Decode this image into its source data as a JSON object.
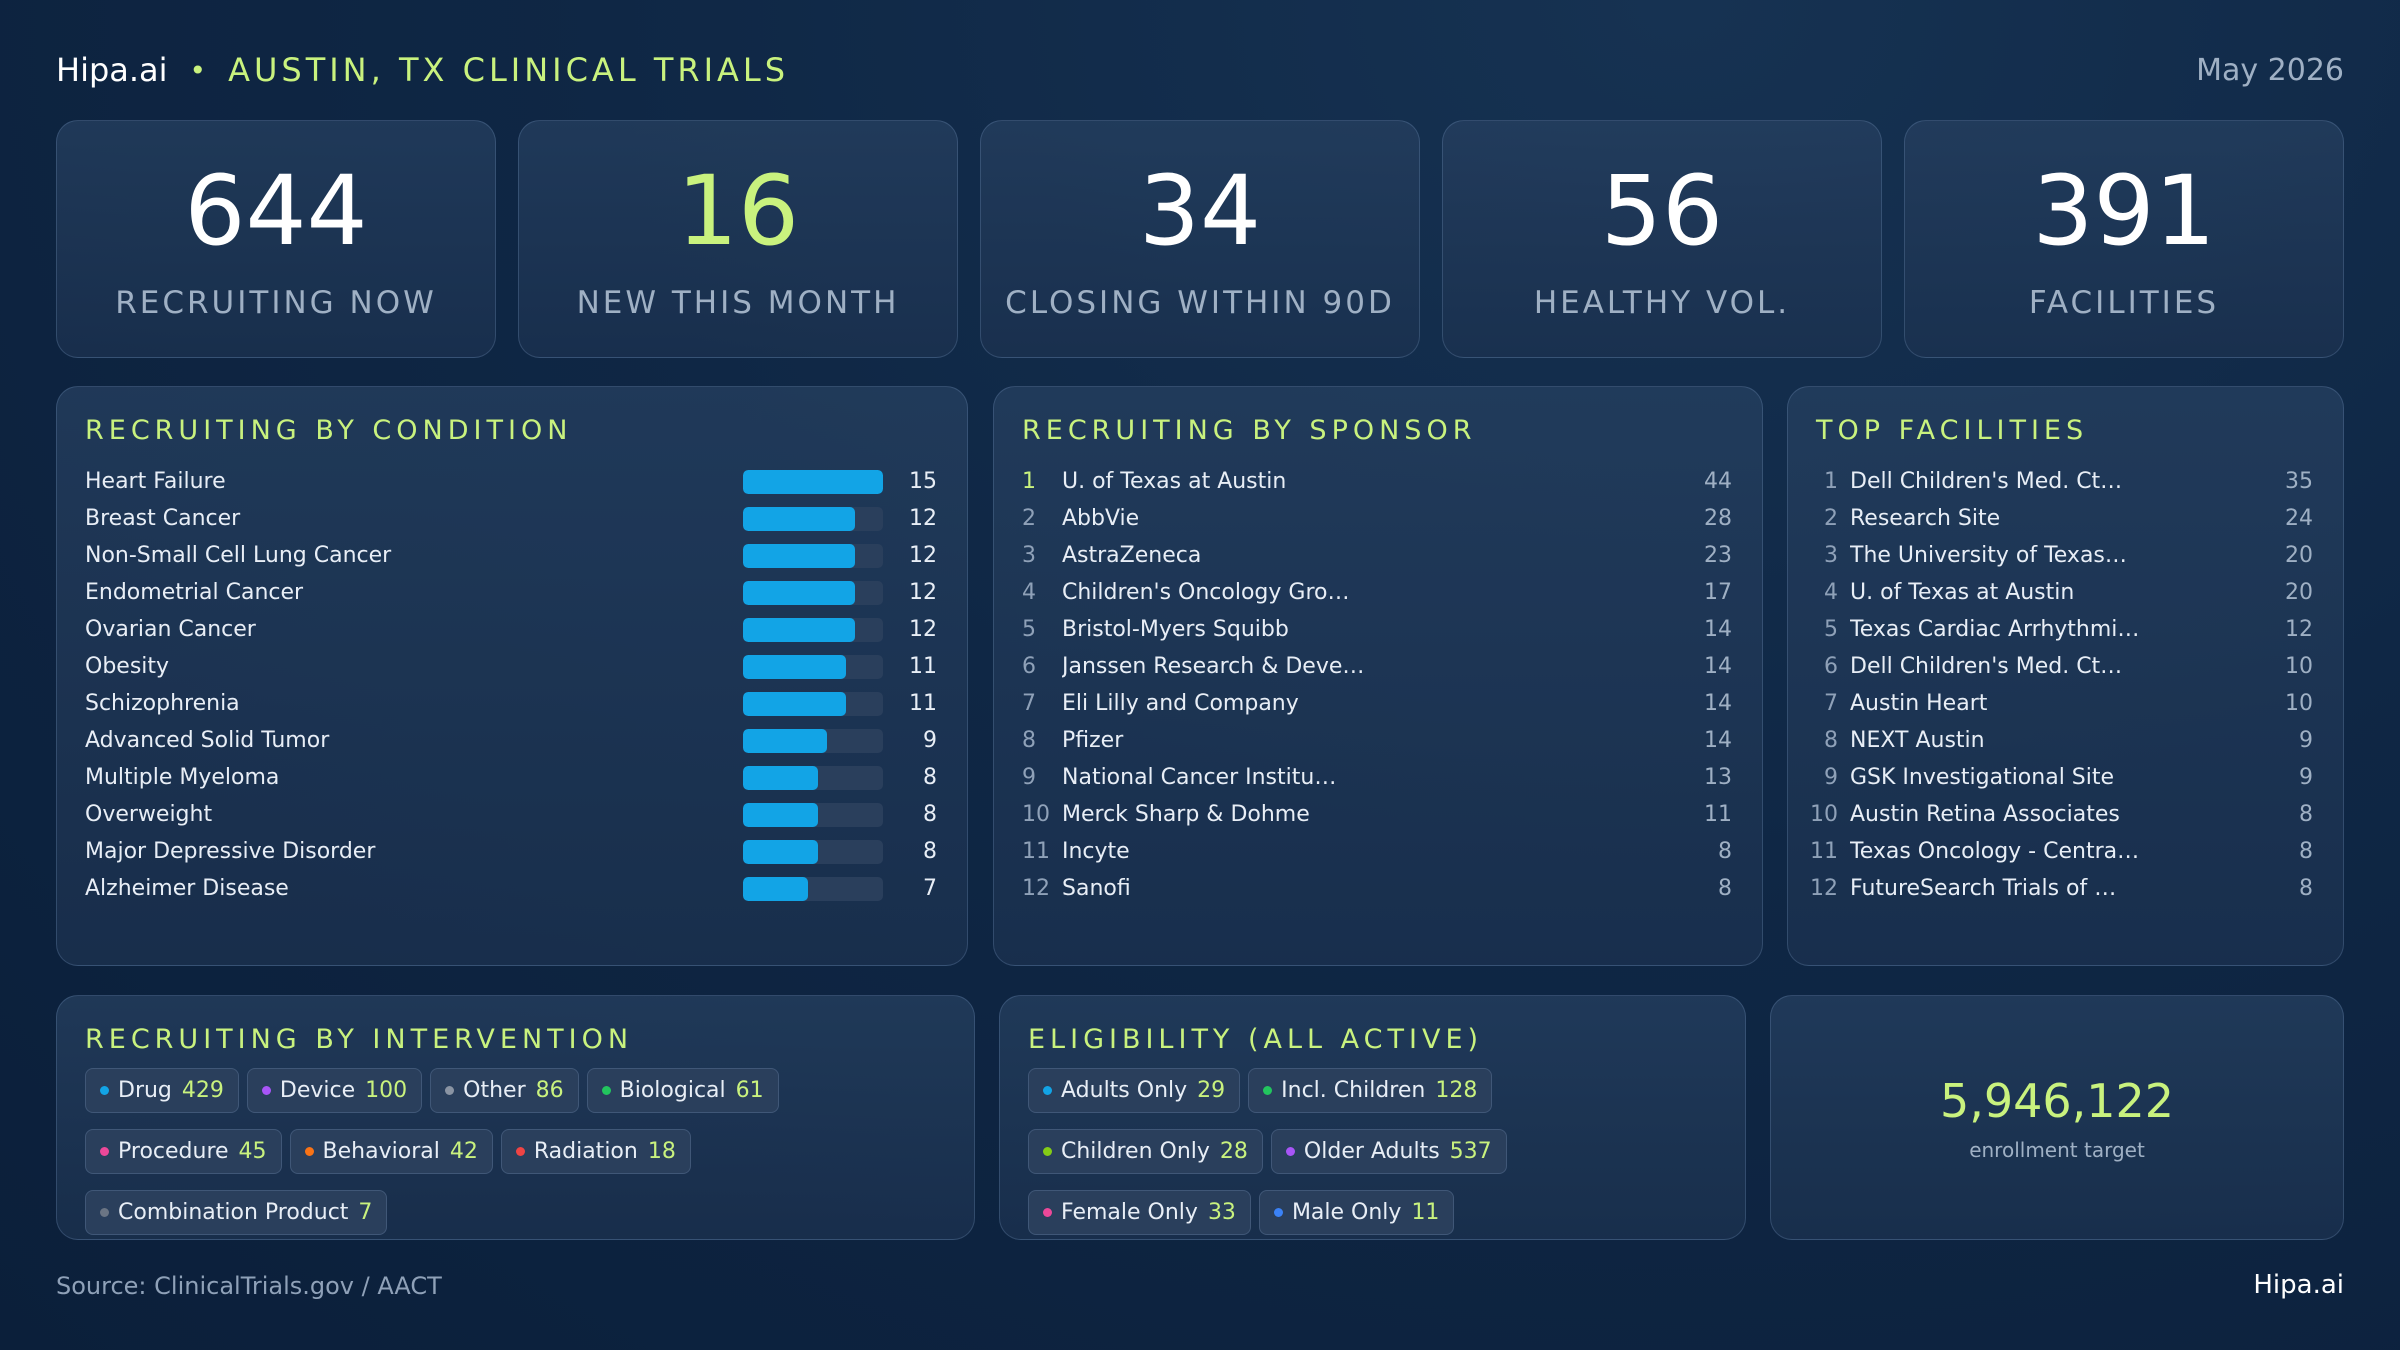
{
  "header": {
    "brand": "Hipa.ai",
    "separator": "•",
    "title": "AUSTIN, TX CLINICAL TRIALS",
    "date": "May 2026"
  },
  "kpis": [
    {
      "value": "644",
      "label": "RECRUITING NOW"
    },
    {
      "value": "16",
      "label": "NEW THIS MONTH"
    },
    {
      "value": "34",
      "label": "CLOSING WITHIN 90D"
    },
    {
      "value": "56",
      "label": "HEALTHY VOL."
    },
    {
      "value": "391",
      "label": "FACILITIES"
    }
  ],
  "colors": {
    "accent": "#c9f27e",
    "bar": "#12a4e6"
  },
  "condition": {
    "title": "RECRUITING BY CONDITION",
    "max": 15,
    "rows": [
      {
        "name": "Heart Failure",
        "count": 15
      },
      {
        "name": "Breast Cancer",
        "count": 12
      },
      {
        "name": "Non-Small Cell Lung Cancer",
        "count": 12
      },
      {
        "name": "Endometrial Cancer",
        "count": 12
      },
      {
        "name": "Ovarian Cancer",
        "count": 12
      },
      {
        "name": "Obesity",
        "count": 11
      },
      {
        "name": "Schizophrenia",
        "count": 11
      },
      {
        "name": "Advanced Solid Tumor",
        "count": 9
      },
      {
        "name": "Multiple Myeloma",
        "count": 8
      },
      {
        "name": "Overweight",
        "count": 8
      },
      {
        "name": "Major Depressive Disorder",
        "count": 8
      },
      {
        "name": "Alzheimer Disease",
        "count": 7
      }
    ]
  },
  "sponsor": {
    "title": "RECRUITING BY SPONSOR",
    "rows": [
      {
        "rank": "1",
        "name": "U. of Texas at Austin",
        "count": "44"
      },
      {
        "rank": "2",
        "name": "AbbVie",
        "count": "28"
      },
      {
        "rank": "3",
        "name": "AstraZeneca",
        "count": "23"
      },
      {
        "rank": "4",
        "name": "Children's Oncology Gro…",
        "count": "17"
      },
      {
        "rank": "5",
        "name": "Bristol-Myers Squibb",
        "count": "14"
      },
      {
        "rank": "6",
        "name": "Janssen Research & Deve…",
        "count": "14"
      },
      {
        "rank": "7",
        "name": "Eli Lilly and Company",
        "count": "14"
      },
      {
        "rank": "8",
        "name": "Pfizer",
        "count": "14"
      },
      {
        "rank": "9",
        "name": "National Cancer Institu…",
        "count": "13"
      },
      {
        "rank": "10",
        "name": "Merck Sharp & Dohme",
        "count": "11"
      },
      {
        "rank": "11",
        "name": "Incyte",
        "count": "8"
      },
      {
        "rank": "12",
        "name": "Sanofi",
        "count": "8"
      }
    ]
  },
  "facilities": {
    "title": "TOP FACILITIES",
    "rows": [
      {
        "rank": "1",
        "name": "Dell Children's Med. Ct…",
        "count": "35"
      },
      {
        "rank": "2",
        "name": "Research Site",
        "count": "24"
      },
      {
        "rank": "3",
        "name": "The University of Texas…",
        "count": "20"
      },
      {
        "rank": "4",
        "name": "U. of Texas at Austin",
        "count": "20"
      },
      {
        "rank": "5",
        "name": "Texas Cardiac Arrhythmi…",
        "count": "12"
      },
      {
        "rank": "6",
        "name": "Dell Children's Med. Ct…",
        "count": "10"
      },
      {
        "rank": "7",
        "name": "Austin Heart",
        "count": "10"
      },
      {
        "rank": "8",
        "name": "NEXT Austin",
        "count": "9"
      },
      {
        "rank": "9",
        "name": "GSK Investigational Site",
        "count": "9"
      },
      {
        "rank": "10",
        "name": "Austin Retina Associates",
        "count": "8"
      },
      {
        "rank": "11",
        "name": "Texas Oncology - Centra…",
        "count": "8"
      },
      {
        "rank": "12",
        "name": "FutureSearch Trials of …",
        "count": "8"
      }
    ]
  },
  "intervention": {
    "title": "RECRUITING BY INTERVENTION",
    "chips": [
      {
        "label": "Drug",
        "count": "429",
        "color": "#12a4e6"
      },
      {
        "label": "Device",
        "count": "100",
        "color": "#a855f7"
      },
      {
        "label": "Other",
        "count": "86",
        "color": "#8a94a3"
      },
      {
        "label": "Biological",
        "count": "61",
        "color": "#22c55e"
      },
      {
        "label": "Procedure",
        "count": "45",
        "color": "#ec4899"
      },
      {
        "label": "Behavioral",
        "count": "42",
        "color": "#f97316"
      },
      {
        "label": "Radiation",
        "count": "18",
        "color": "#ef4444"
      },
      {
        "label": "Combination Product",
        "count": "7",
        "color": "#6b7584"
      }
    ]
  },
  "eligibility": {
    "title": "ELIGIBILITY (ALL ACTIVE)",
    "chips": [
      {
        "label": "Adults Only",
        "count": "29",
        "color": "#12a4e6"
      },
      {
        "label": "Incl. Children",
        "count": "128",
        "color": "#22c55e"
      },
      {
        "label": "Children Only",
        "count": "28",
        "color": "#84cc16"
      },
      {
        "label": "Older Adults",
        "count": "537",
        "color": "#a855f7"
      },
      {
        "label": "Female Only",
        "count": "33",
        "color": "#ec4899"
      },
      {
        "label": "Male Only",
        "count": "11",
        "color": "#3b82f6"
      }
    ]
  },
  "enrollment": {
    "value": "5,946,122",
    "label": "enrollment target"
  },
  "footer": {
    "source": "Source: ClinicalTrials.gov /  AACT",
    "brand": "Hipa.ai"
  }
}
